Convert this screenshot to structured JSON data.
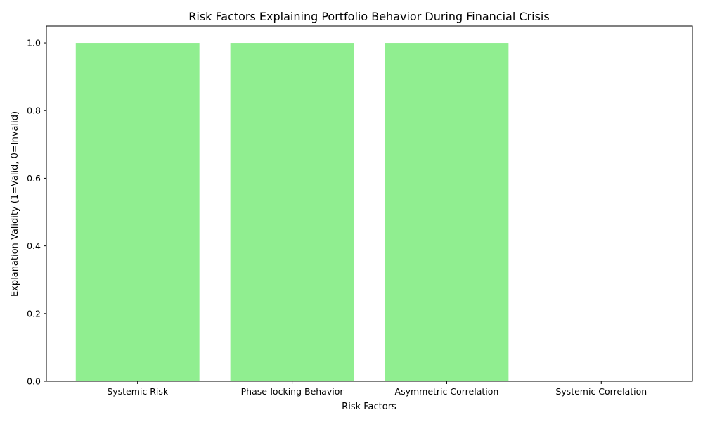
{
  "chart_data": {
    "type": "bar",
    "title": "Risk Factors Explaining Portfolio Behavior During Financial Crisis",
    "xlabel": "Risk Factors",
    "ylabel": "Explanation Validity (1=Valid, 0=Invalid)",
    "categories": [
      "Systemic Risk",
      "Phase-locking Behavior",
      "Asymmetric Correlation",
      "Systemic Correlation"
    ],
    "values": [
      1,
      1,
      1,
      0
    ],
    "ylim": [
      0,
      1.05
    ],
    "yticks": [
      "0.0",
      "0.2",
      "0.4",
      "0.6",
      "0.8",
      "1.0"
    ],
    "bar_color": "#90ee90",
    "grid": false,
    "legend": "none"
  }
}
